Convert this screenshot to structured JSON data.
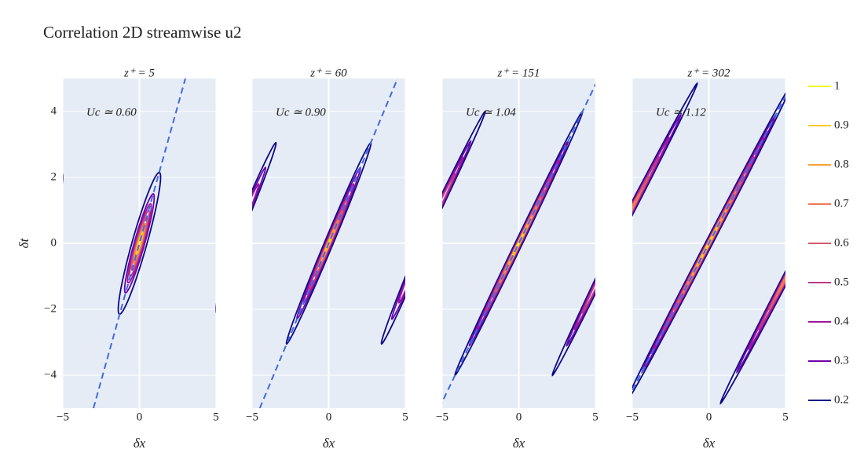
{
  "title": "Correlation 2D streamwise u2",
  "levels": [
    1,
    0.9,
    0.8,
    0.7,
    0.6,
    0.5,
    0.4,
    0.3,
    0.2
  ],
  "level_colors": [
    "#f0f921",
    "#fdca26",
    "#fb9f3a",
    "#ed7953",
    "#d8576b",
    "#bd3786",
    "#9c179e",
    "#7201a8",
    "#0d0887"
  ],
  "chart_data": [
    {
      "type": "contour",
      "title": "z⁺ = 5",
      "annotation": {
        "value": 0.6,
        "label": "Uc ≃ 0.60"
      },
      "xlabel": "δx",
      "ylabel": "δt",
      "xlim": [
        -5,
        5
      ],
      "ylim": [
        -5,
        5
      ],
      "xticks": [
        {
          "value": -5,
          "label": "−5"
        },
        0,
        5
      ],
      "yticks": [
        {
          "value": -4,
          "label": "−4"
        },
        {
          "value": -2,
          "label": "−2"
        },
        0,
        2,
        4
      ],
      "blobs": [
        {
          "x": 0,
          "t": 0,
          "levels": [
            0.2,
            0.3,
            0.4,
            0.5,
            0.6,
            0.7,
            0.8,
            0.9
          ],
          "half_length": [
            2.15,
            1.5,
            1.2,
            1.0,
            0.8,
            0.6,
            0.45,
            0.3
          ],
          "half_width": [
            0.5,
            0.35,
            0.28,
            0.22,
            0.18,
            0.14,
            0.1,
            0.07
          ]
        },
        {
          "x": -6.4,
          "t": 0,
          "levels": [
            0.2
          ],
          "half_length": [
            2.15
          ],
          "half_width": [
            0.5
          ]
        },
        {
          "x": 6.4,
          "t": 0,
          "levels": [
            0.2
          ],
          "half_length": [
            2.15
          ],
          "half_width": [
            0.5
          ]
        }
      ]
    },
    {
      "type": "contour",
      "title": "z⁺ = 60",
      "annotation": {
        "value": 0.9,
        "label": "Uc ≃ 0.90"
      },
      "xlabel": "δx",
      "xlim": [
        -5,
        5
      ],
      "ylim": [
        -5,
        5
      ],
      "xticks": [
        {
          "value": -5,
          "label": "−5"
        },
        0,
        5
      ],
      "yticks": [
        -4,
        -2,
        0,
        2,
        4
      ],
      "blobs": [
        {
          "x": 0,
          "t": 0,
          "levels": [
            0.2,
            0.3,
            0.4,
            0.5,
            0.6,
            0.7,
            0.8,
            0.9
          ],
          "half_length": [
            3.05,
            2.3,
            1.8,
            1.4,
            1.0,
            0.7,
            0.4,
            0.2
          ],
          "half_width": [
            0.3,
            0.22,
            0.18,
            0.14,
            0.11,
            0.09,
            0.06,
            0.04
          ]
        },
        {
          "x": -6.2,
          "t": 0,
          "levels": [
            0.2,
            0.3,
            0.4
          ],
          "half_length": [
            3.05,
            2.3,
            1.8
          ],
          "half_width": [
            0.3,
            0.22,
            0.18
          ]
        },
        {
          "x": 6.2,
          "t": 0,
          "levels": [
            0.2,
            0.3,
            0.4
          ],
          "half_length": [
            3.05,
            2.3,
            1.8
          ],
          "half_width": [
            0.3,
            0.22,
            0.18
          ]
        }
      ]
    },
    {
      "type": "contour",
      "title": "z⁺ = 151",
      "annotation": {
        "value": 1.04,
        "label": "Uc ≃ 1.04"
      },
      "xlabel": "δx",
      "xlim": [
        -5,
        5
      ],
      "ylim": [
        -5,
        5
      ],
      "xticks": [
        {
          "value": -5,
          "label": "−5"
        },
        0,
        5
      ],
      "yticks": [
        -4,
        -2,
        0,
        2,
        4
      ],
      "blobs": [
        {
          "x": 0,
          "t": 0,
          "levels": [
            0.2,
            0.3,
            0.4,
            0.5,
            0.6,
            0.7,
            0.8,
            0.9,
            1
          ],
          "half_length": [
            4.0,
            3.1,
            2.6,
            2.1,
            1.6,
            1.2,
            0.8,
            0.45,
            0.1
          ],
          "half_width": [
            0.25,
            0.18,
            0.15,
            0.12,
            0.1,
            0.08,
            0.06,
            0.04,
            0.02
          ]
        },
        {
          "x": -6.36,
          "t": 0,
          "levels": [
            0.2,
            0.3,
            0.4,
            0.5
          ],
          "half_length": [
            4.0,
            3.1,
            2.6,
            2.1
          ],
          "half_width": [
            0.25,
            0.18,
            0.15,
            0.12
          ]
        },
        {
          "x": 6.36,
          "t": 0,
          "levels": [
            0.2,
            0.3,
            0.4,
            0.5
          ],
          "half_length": [
            4.0,
            3.1,
            2.6,
            2.1
          ],
          "half_width": [
            0.25,
            0.18,
            0.15,
            0.12
          ]
        }
      ]
    },
    {
      "type": "contour",
      "title": "z⁺ = 302",
      "annotation": {
        "value": 1.12,
        "label": "Uc ≃ 1.12"
      },
      "xlabel": "δx",
      "xlim": [
        -5,
        5
      ],
      "ylim": [
        -5,
        5
      ],
      "xticks": [
        {
          "value": -5,
          "label": "−5"
        },
        0,
        5
      ],
      "yticks": [
        -4,
        -2,
        0,
        2,
        4
      ],
      "blobs": [
        {
          "x": 0,
          "t": 0,
          "levels": [
            0.2,
            0.3,
            0.4,
            0.5,
            0.6,
            0.7,
            0.8,
            0.9
          ],
          "half_length": [
            4.85,
            3.9,
            3.2,
            2.6,
            2.0,
            1.5,
            1.0,
            0.5
          ],
          "half_width": [
            0.25,
            0.18,
            0.15,
            0.12,
            0.1,
            0.08,
            0.06,
            0.04
          ]
        },
        {
          "x": -6.2,
          "t": 0,
          "levels": [
            0.2,
            0.3,
            0.4,
            0.5,
            0.6,
            0.7
          ],
          "half_length": [
            4.85,
            3.9,
            3.2,
            2.6,
            2.0,
            1.5
          ],
          "half_width": [
            0.25,
            0.18,
            0.15,
            0.12,
            0.1,
            0.08
          ]
        },
        {
          "x": 6.2,
          "t": 0,
          "levels": [
            0.2,
            0.3,
            0.4,
            0.5,
            0.6,
            0.7
          ],
          "half_length": [
            4.85,
            3.9,
            3.2,
            2.6,
            2.0,
            1.5
          ],
          "half_width": [
            0.25,
            0.18,
            0.15,
            0.12,
            0.1,
            0.08
          ]
        }
      ]
    }
  ]
}
